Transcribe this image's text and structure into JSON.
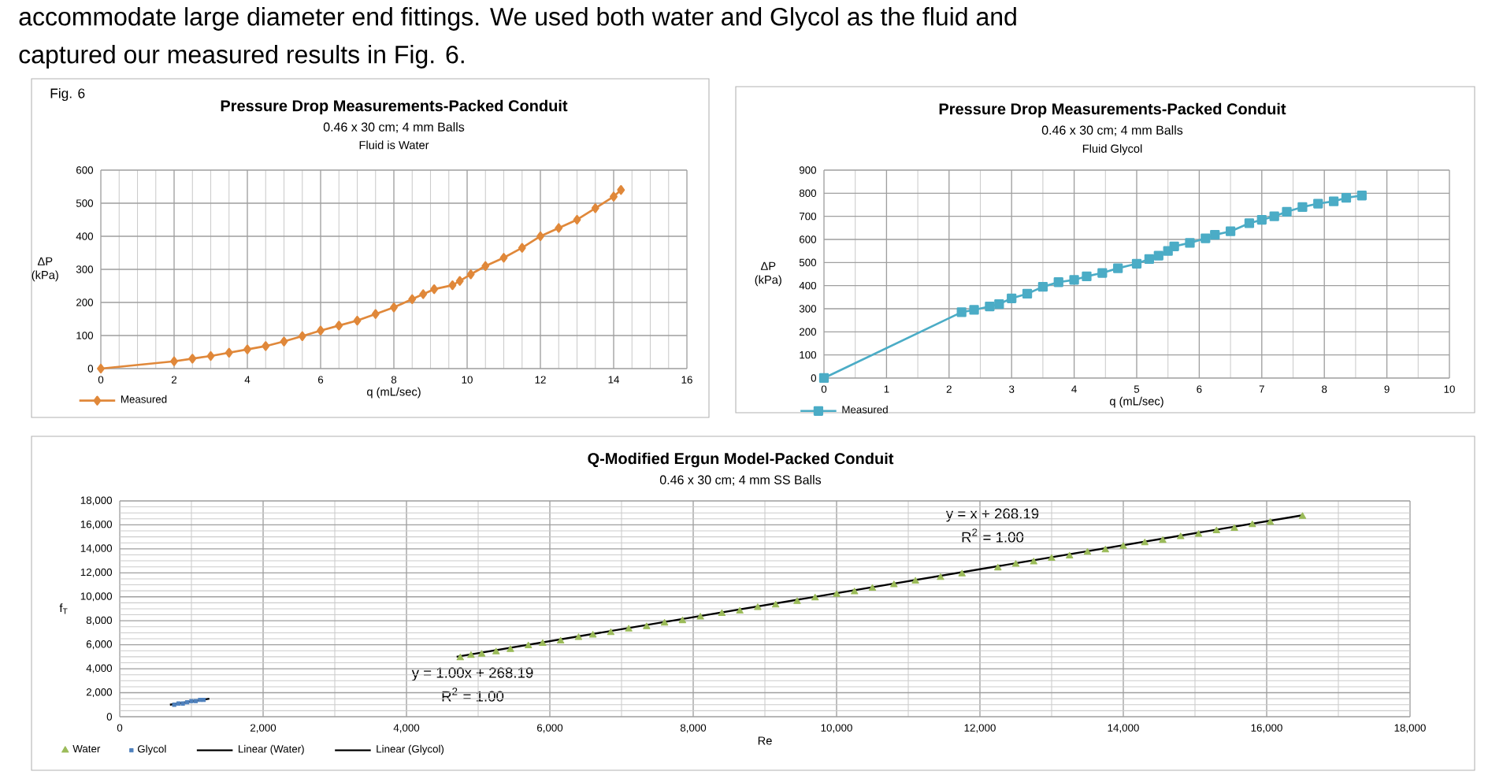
{
  "chart_data": [
    {
      "type": "other",
      "annotations": [
        "accommodate large diameter end fittings. We used both water and Glycol as the fluid and",
        "captured our measured results in Fig. 6."
      ]
    },
    {
      "type": "line",
      "title": "Pressure Drop Measurements-Packed Conduit",
      "subtitle": "0.46 x 30 cm; 4 mm Balls",
      "annotations": [
        "Fig. 6",
        "Fluid is Water"
      ],
      "xlabel": "q (mL/sec)",
      "ylabel": "ΔP (kPa)",
      "xlim": [
        0,
        16
      ],
      "xticks": [
        0,
        2,
        4,
        6,
        8,
        10,
        12,
        14,
        16
      ],
      "ylim": [
        0,
        600
      ],
      "yticks": [
        0,
        100,
        200,
        300,
        400,
        500,
        600
      ],
      "grid": true,
      "legend": "bottom left",
      "marker": "diamond",
      "series": [
        {
          "name": "Measured",
          "color": "#e0883a",
          "x": [
            0,
            2,
            2.5,
            3,
            3.5,
            4,
            4.5,
            5,
            5.5,
            6,
            6.5,
            7,
            7.5,
            8,
            8.5,
            8.8,
            9.1,
            9.6,
            9.8,
            10.1,
            10.5,
            11,
            11.5,
            12,
            12.5,
            13,
            13.5,
            14,
            14.2
          ],
          "values": [
            0,
            22,
            30,
            38,
            48,
            58,
            68,
            82,
            98,
            115,
            130,
            145,
            165,
            185,
            210,
            225,
            240,
            252,
            265,
            285,
            310,
            335,
            365,
            400,
            425,
            450,
            485,
            520,
            540
          ]
        }
      ]
    },
    {
      "type": "line",
      "title": "Pressure Drop Measurements-Packed Conduit",
      "subtitle": "0.46 x 30 cm; 4 mm Balls",
      "annotations": [
        "Fluid Glycol"
      ],
      "xlabel": "q (mL/sec)",
      "ylabel": "ΔP (kPa)",
      "xlim": [
        0,
        10
      ],
      "xticks": [
        0,
        1,
        2,
        3,
        4,
        5,
        6,
        7,
        8,
        9,
        10
      ],
      "ylim": [
        0,
        900
      ],
      "yticks": [
        0,
        100,
        200,
        300,
        400,
        500,
        600,
        700,
        800,
        900
      ],
      "grid": true,
      "legend": "bottom left",
      "marker": "square",
      "series": [
        {
          "name": "Measured",
          "color": "#4bacc6",
          "x": [
            0,
            2.2,
            2.4,
            2.65,
            2.8,
            3,
            3.25,
            3.5,
            3.75,
            4,
            4.2,
            4.45,
            4.7,
            5,
            5.2,
            5.35,
            5.5,
            5.6,
            5.85,
            6.1,
            6.25,
            6.5,
            6.8,
            7,
            7.2,
            7.4,
            7.65,
            7.9,
            8.15,
            8.35,
            8.6
          ],
          "values": [
            0,
            285,
            295,
            310,
            320,
            345,
            365,
            395,
            415,
            425,
            440,
            455,
            475,
            495,
            515,
            530,
            550,
            570,
            585,
            605,
            620,
            635,
            670,
            685,
            700,
            720,
            740,
            755,
            765,
            780,
            790
          ]
        }
      ]
    },
    {
      "type": "scatter",
      "title": "Q-Modified Ergun Model-Packed Conduit",
      "subtitle": "0.46 x 30 cm; 4 mm SS Balls",
      "annotations": [
        "y = 1.00x + 268.19",
        "R$^{2}$ = 1.00",
        "y = x + 268.19",
        "R$^{2}$ = 1.00"
      ],
      "xlabel": "Re",
      "ylabel": "f$_{T}$",
      "xlim": [
        0,
        18000
      ],
      "xticks": [
        0,
        {
          "value": 2000,
          "label": "2,000"
        },
        {
          "value": 4000,
          "label": "4,000"
        },
        {
          "value": 6000,
          "label": "6,000"
        },
        {
          "value": 8000,
          "label": "8,000"
        },
        {
          "value": 10000,
          "label": "10,000"
        },
        {
          "value": 12000,
          "label": "12,000"
        },
        {
          "value": 14000,
          "label": "14,000"
        },
        {
          "value": 16000,
          "label": "16,000"
        },
        {
          "value": 18000,
          "label": "18,000"
        }
      ],
      "ylim": [
        0,
        18000
      ],
      "yticks": [
        0,
        {
          "value": 2000,
          "label": "2,000"
        },
        {
          "value": 4000,
          "label": "4,000"
        },
        {
          "value": 6000,
          "label": "6,000"
        },
        {
          "value": 8000,
          "label": "8,000"
        },
        {
          "value": 10000,
          "label": "10,000"
        },
        {
          "value": 12000,
          "label": "12,000"
        },
        {
          "value": 14000,
          "label": "14,000"
        },
        {
          "value": 16000,
          "label": "16,000"
        },
        {
          "value": 18000,
          "label": "18,000"
        }
      ],
      "grid": true,
      "legend": "bottom",
      "series": [
        {
          "name": "Water",
          "color": "#9bbb59",
          "marker": "triangle",
          "x": [
            4750,
            4900,
            5050,
            5250,
            5450,
            5700,
            5900,
            6150,
            6400,
            6600,
            6850,
            7100,
            7350,
            7600,
            7850,
            8100,
            8400,
            8650,
            8900,
            9150,
            9450,
            9700,
            10000,
            10250,
            10500,
            10800,
            11100,
            11450,
            11750,
            12250,
            12500,
            12750,
            13000,
            13250,
            13500,
            13750,
            14000,
            14300,
            14550,
            14800,
            15050,
            15300,
            15550,
            15800,
            16050,
            16500
          ],
          "values": [
            4900,
            5100,
            5200,
            5400,
            5600,
            5900,
            6100,
            6300,
            6600,
            6800,
            7000,
            7300,
            7500,
            7800,
            8000,
            8300,
            8600,
            8800,
            9100,
            9300,
            9600,
            9900,
            10200,
            10400,
            10700,
            11000,
            11300,
            11600,
            11900,
            12400,
            12700,
            12900,
            13200,
            13400,
            13700,
            13900,
            14200,
            14500,
            14700,
            15000,
            15200,
            15500,
            15700,
            16000,
            16200,
            16700
          ]
        },
        {
          "name": "Glycol",
          "color": "#4f81bd",
          "marker": "square",
          "x": [
            760,
            820,
            880,
            940,
            1000,
            1060,
            1120,
            1170
          ],
          "values": [
            1000,
            1100,
            1100,
            1200,
            1300,
            1300,
            1400,
            1400
          ]
        },
        {
          "name": "Linear (Water)",
          "color": "#000000",
          "type": "line",
          "x": [
            4700,
            16500
          ],
          "values": [
            5000,
            16800
          ]
        },
        {
          "name": "Linear (Glycol)",
          "color": "#000000",
          "type": "line",
          "x": [
            700,
            1250
          ],
          "values": [
            1000,
            1500
          ]
        }
      ]
    }
  ]
}
